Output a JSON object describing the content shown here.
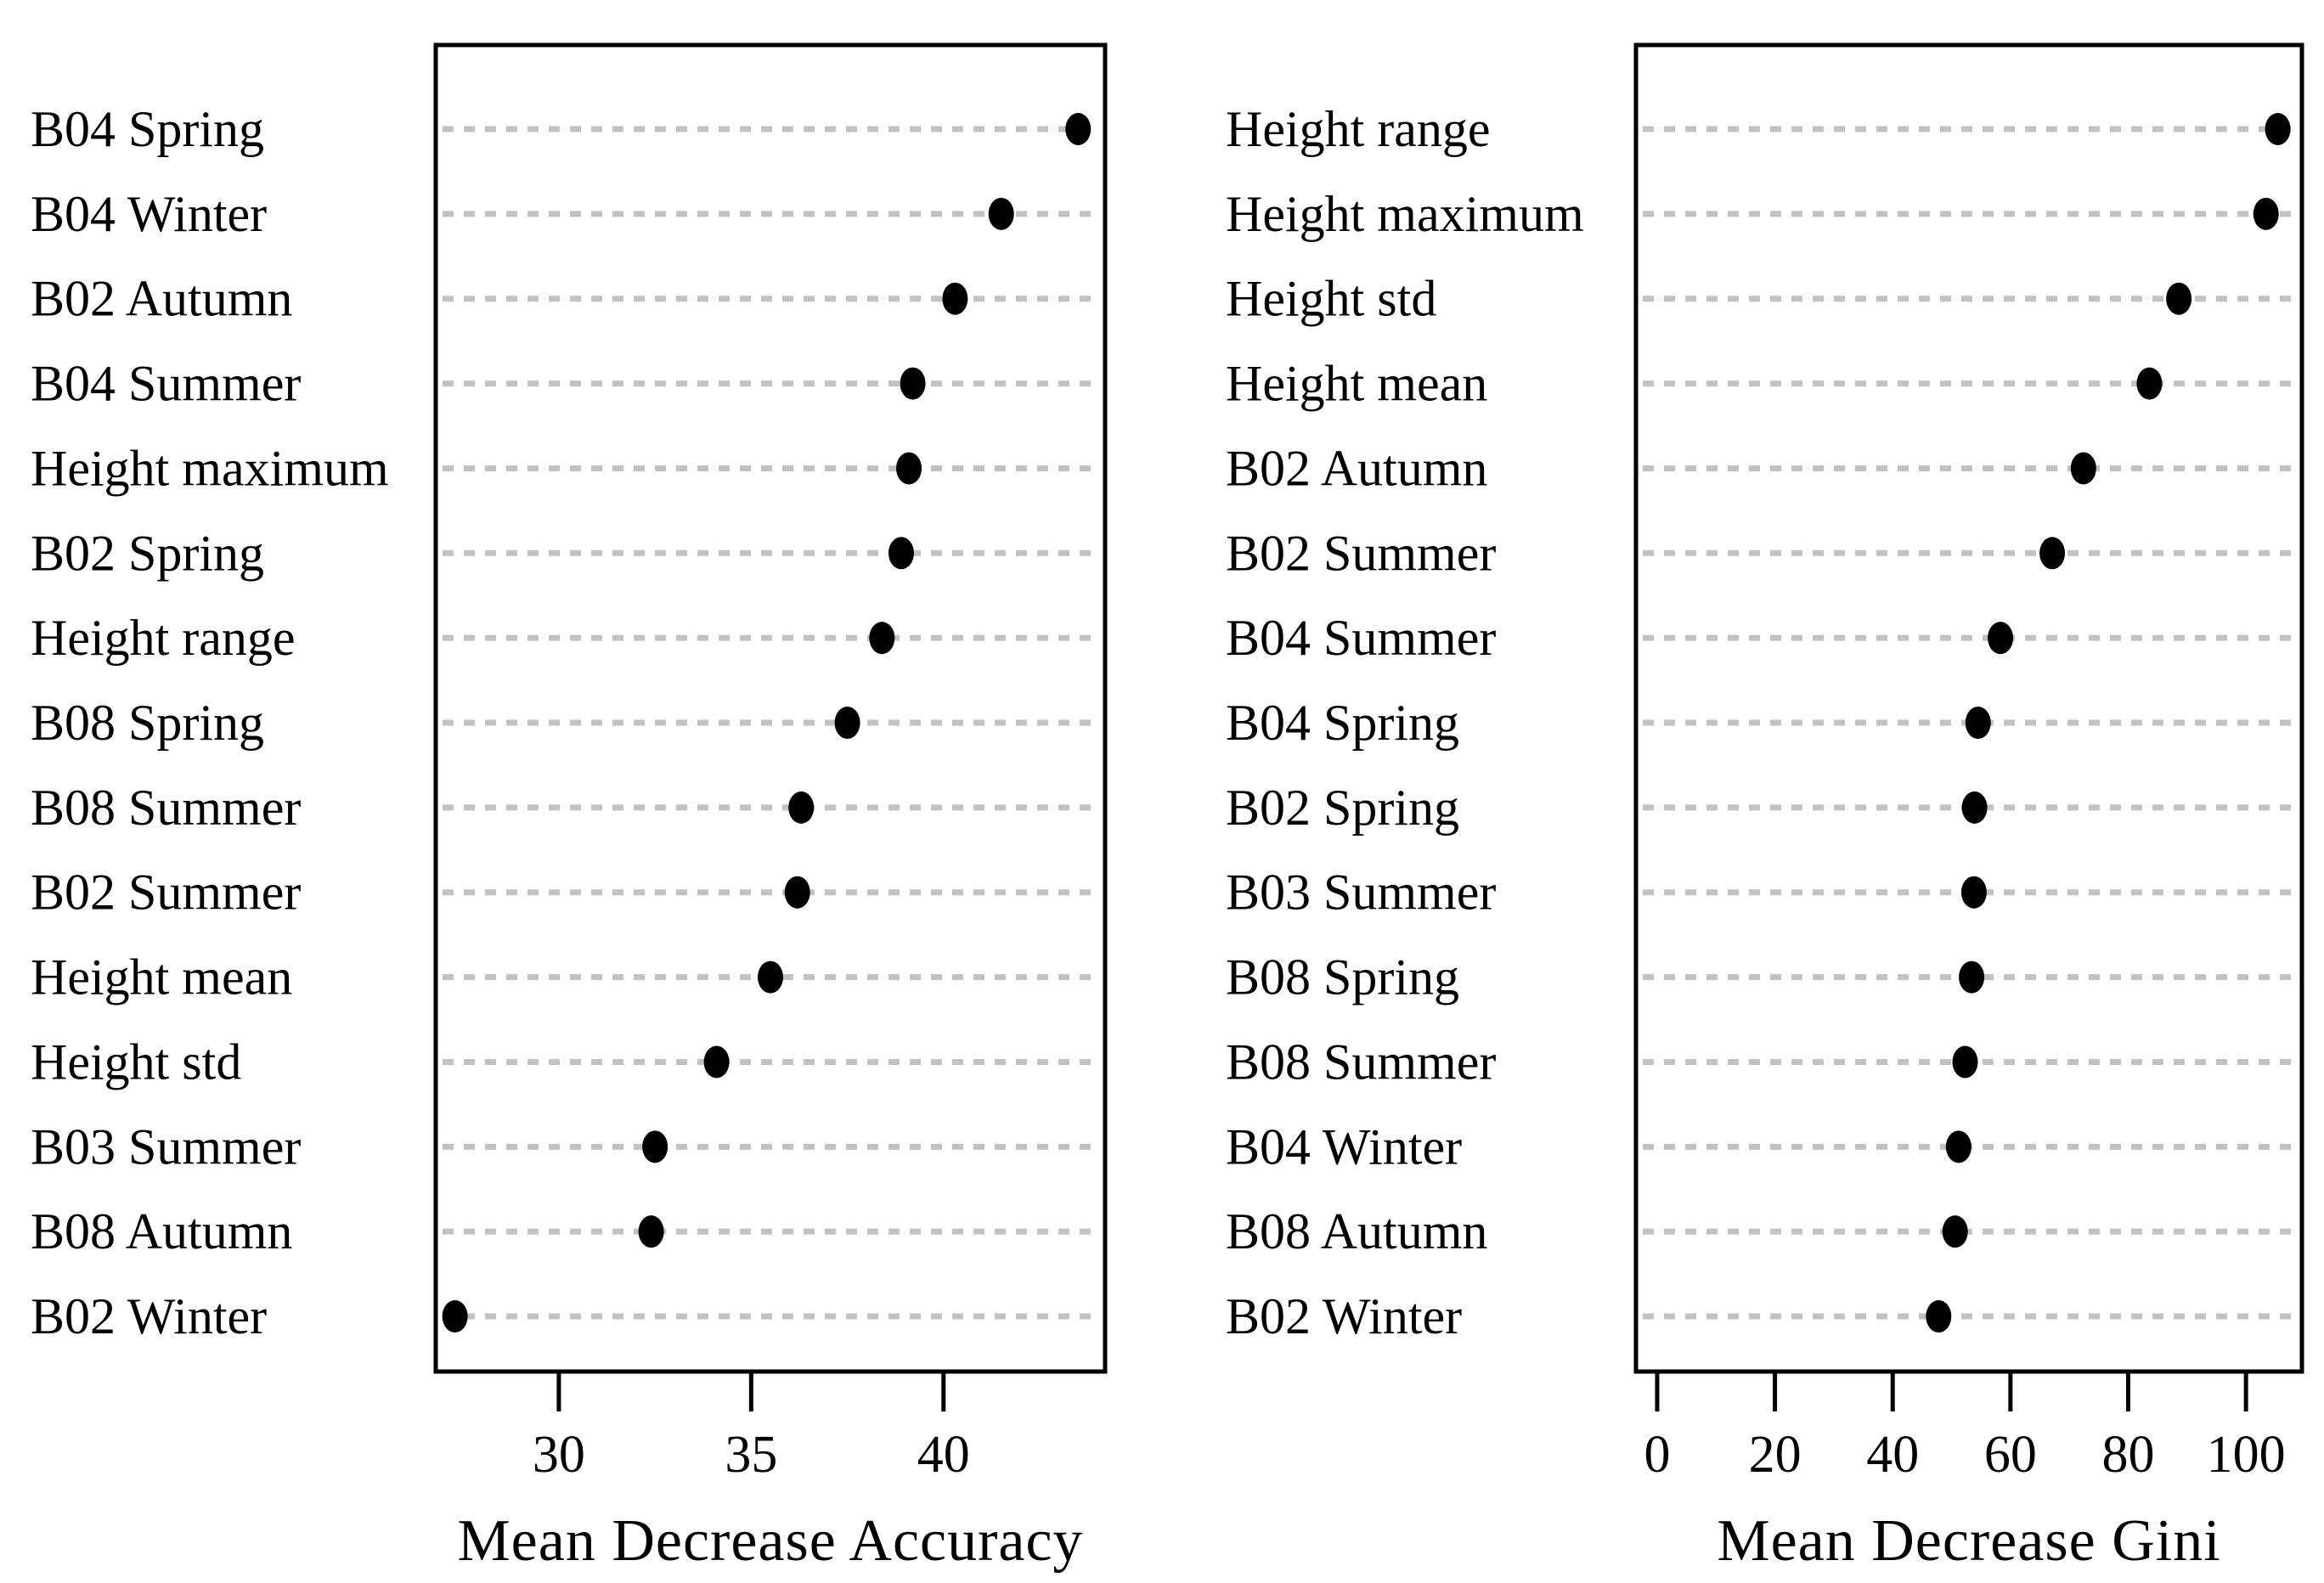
{
  "figure": {
    "background_color": "#ffffff",
    "text_color": "#000000",
    "dot_color": "#000000",
    "gridline_color": "#c2c2c2",
    "box_border_color": "#000000"
  },
  "chart_data": [
    {
      "type": "scatter",
      "variant": "dot-chart",
      "title": "",
      "xlabel": "Mean Decrease Accuracy",
      "ylabel": "",
      "categories": [
        "B04 Spring",
        "B04 Winter",
        "B02 Autumn",
        "B04 Summer",
        "Height maximum",
        "B02 Spring",
        "Height range",
        "B08 Spring",
        "B08 Summer",
        "B02 Summer",
        "Height mean",
        "Height std",
        "B03 Summer",
        "B08 Autumn",
        "B02 Winter"
      ],
      "values": [
        43.5,
        41.5,
        40.3,
        39.2,
        39.1,
        38.9,
        38.4,
        37.5,
        36.3,
        36.2,
        35.5,
        34.1,
        32.5,
        32.4,
        27.3
      ],
      "xticks": [
        30,
        35,
        40
      ],
      "xlim": [
        26.8,
        44.2
      ],
      "grid": "horizontal dotted lines at each category row",
      "legend": "none",
      "marker": "filled black dot"
    },
    {
      "type": "scatter",
      "variant": "dot-chart",
      "title": "",
      "xlabel": "Mean Decrease Gini",
      "ylabel": "",
      "categories": [
        "Height range",
        "Height maximum",
        "Height std",
        "Height mean",
        "B02 Autumn",
        "B02 Summer",
        "B04 Summer",
        "B04 Spring",
        "B02 Spring",
        "B03 Summer",
        "B08 Spring",
        "B08 Summer",
        "B04 Winter",
        "B08 Autumn",
        "B02 Winter"
      ],
      "values": [
        105.4,
        103.4,
        88.6,
        83.6,
        72.4,
        67.1,
        58.3,
        54.5,
        53.9,
        53.8,
        53.4,
        52.3,
        51.2,
        50.6,
        47.8
      ],
      "xticks": [
        0,
        20,
        40,
        60,
        80,
        100
      ],
      "xlim": [
        -3.6,
        109.5
      ],
      "grid": "horizontal dotted lines at each category row",
      "legend": "none",
      "marker": "filled black dot"
    }
  ]
}
